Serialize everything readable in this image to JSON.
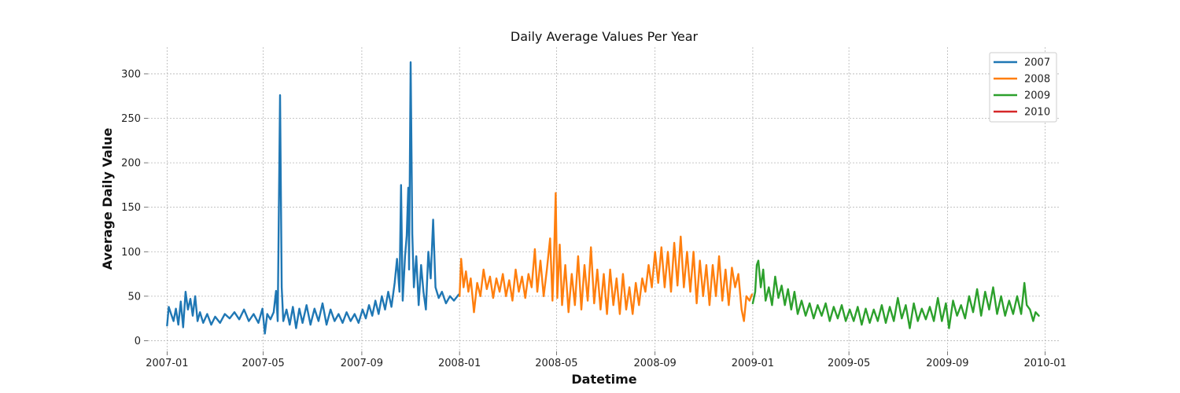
{
  "chart_data": {
    "type": "line",
    "title": "Daily Average Values Per Year",
    "xlabel": "Datetime",
    "ylabel": "Average Daily Value",
    "x_range": [
      "2006-12-08",
      "2010-01-20"
    ],
    "ylim": [
      -12,
      330
    ],
    "x_ticks": [
      "2007-01",
      "2007-05",
      "2007-09",
      "2008-01",
      "2008-05",
      "2008-09",
      "2009-01",
      "2009-05",
      "2009-09",
      "2010-01"
    ],
    "y_ticks": [
      0,
      50,
      100,
      150,
      200,
      250,
      300
    ],
    "grid": true,
    "legend_position": "top-right",
    "series": [
      {
        "name": "2007",
        "color": "#1f77b4",
        "points": [
          [
            "2007-01-01",
            17
          ],
          [
            "2007-01-03",
            38
          ],
          [
            "2007-01-06",
            30
          ],
          [
            "2007-01-09",
            22
          ],
          [
            "2007-01-12",
            36
          ],
          [
            "2007-01-15",
            18
          ],
          [
            "2007-01-18",
            44
          ],
          [
            "2007-01-21",
            15
          ],
          [
            "2007-01-24",
            55
          ],
          [
            "2007-01-27",
            35
          ],
          [
            "2007-01-30",
            47
          ],
          [
            "2007-02-02",
            28
          ],
          [
            "2007-02-05",
            50
          ],
          [
            "2007-02-08",
            22
          ],
          [
            "2007-02-11",
            32
          ],
          [
            "2007-02-15",
            20
          ],
          [
            "2007-02-20",
            30
          ],
          [
            "2007-02-25",
            18
          ],
          [
            "2007-03-02",
            27
          ],
          [
            "2007-03-08",
            20
          ],
          [
            "2007-03-14",
            30
          ],
          [
            "2007-03-20",
            25
          ],
          [
            "2007-03-26",
            32
          ],
          [
            "2007-04-01",
            24
          ],
          [
            "2007-04-07",
            35
          ],
          [
            "2007-04-13",
            22
          ],
          [
            "2007-04-19",
            30
          ],
          [
            "2007-04-25",
            20
          ],
          [
            "2007-04-30",
            36
          ],
          [
            "2007-05-03",
            8
          ],
          [
            "2007-05-06",
            30
          ],
          [
            "2007-05-10",
            24
          ],
          [
            "2007-05-14",
            32
          ],
          [
            "2007-05-17",
            56
          ],
          [
            "2007-05-19",
            22
          ],
          [
            "2007-05-22",
            276
          ],
          [
            "2007-05-24",
            60
          ],
          [
            "2007-05-26",
            22
          ],
          [
            "2007-05-30",
            35
          ],
          [
            "2007-06-03",
            18
          ],
          [
            "2007-06-07",
            38
          ],
          [
            "2007-06-11",
            14
          ],
          [
            "2007-06-15",
            36
          ],
          [
            "2007-06-19",
            20
          ],
          [
            "2007-06-24",
            40
          ],
          [
            "2007-06-29",
            18
          ],
          [
            "2007-07-04",
            36
          ],
          [
            "2007-07-09",
            22
          ],
          [
            "2007-07-14",
            42
          ],
          [
            "2007-07-19",
            18
          ],
          [
            "2007-07-24",
            35
          ],
          [
            "2007-07-29",
            22
          ],
          [
            "2007-08-03",
            30
          ],
          [
            "2007-08-08",
            20
          ],
          [
            "2007-08-13",
            32
          ],
          [
            "2007-08-18",
            22
          ],
          [
            "2007-08-23",
            30
          ],
          [
            "2007-08-28",
            20
          ],
          [
            "2007-09-02",
            35
          ],
          [
            "2007-09-06",
            25
          ],
          [
            "2007-09-10",
            40
          ],
          [
            "2007-09-14",
            28
          ],
          [
            "2007-09-18",
            45
          ],
          [
            "2007-09-22",
            30
          ],
          [
            "2007-09-26",
            50
          ],
          [
            "2007-09-30",
            35
          ],
          [
            "2007-10-04",
            55
          ],
          [
            "2007-10-08",
            38
          ],
          [
            "2007-10-12",
            65
          ],
          [
            "2007-10-15",
            92
          ],
          [
            "2007-10-18",
            55
          ],
          [
            "2007-10-20",
            175
          ],
          [
            "2007-10-22",
            45
          ],
          [
            "2007-10-25",
            95
          ],
          [
            "2007-10-27",
            118
          ],
          [
            "2007-10-29",
            172
          ],
          [
            "2007-10-30",
            80
          ],
          [
            "2007-11-01",
            313
          ],
          [
            "2007-11-03",
            120
          ],
          [
            "2007-11-05",
            60
          ],
          [
            "2007-11-08",
            95
          ],
          [
            "2007-11-11",
            40
          ],
          [
            "2007-11-14",
            85
          ],
          [
            "2007-11-17",
            55
          ],
          [
            "2007-11-20",
            35
          ],
          [
            "2007-11-23",
            100
          ],
          [
            "2007-11-26",
            70
          ],
          [
            "2007-11-29",
            136
          ],
          [
            "2007-12-02",
            60
          ],
          [
            "2007-12-06",
            48
          ],
          [
            "2007-12-10",
            55
          ],
          [
            "2007-12-15",
            42
          ],
          [
            "2007-12-20",
            50
          ],
          [
            "2007-12-25",
            45
          ],
          [
            "2007-12-31",
            52
          ]
        ]
      },
      {
        "name": "2008",
        "color": "#ff7f0e",
        "points": [
          [
            "2008-01-01",
            50
          ],
          [
            "2008-01-03",
            92
          ],
          [
            "2008-01-06",
            60
          ],
          [
            "2008-01-09",
            78
          ],
          [
            "2008-01-12",
            55
          ],
          [
            "2008-01-15",
            70
          ],
          [
            "2008-01-19",
            32
          ],
          [
            "2008-01-23",
            65
          ],
          [
            "2008-01-27",
            50
          ],
          [
            "2008-01-31",
            80
          ],
          [
            "2008-02-04",
            58
          ],
          [
            "2008-02-08",
            72
          ],
          [
            "2008-02-12",
            48
          ],
          [
            "2008-02-16",
            70
          ],
          [
            "2008-02-20",
            55
          ],
          [
            "2008-02-24",
            75
          ],
          [
            "2008-02-28",
            50
          ],
          [
            "2008-03-03",
            68
          ],
          [
            "2008-03-07",
            45
          ],
          [
            "2008-03-11",
            80
          ],
          [
            "2008-03-15",
            55
          ],
          [
            "2008-03-19",
            72
          ],
          [
            "2008-03-23",
            48
          ],
          [
            "2008-03-27",
            75
          ],
          [
            "2008-03-31",
            60
          ],
          [
            "2008-04-04",
            103
          ],
          [
            "2008-04-07",
            55
          ],
          [
            "2008-04-11",
            90
          ],
          [
            "2008-04-15",
            50
          ],
          [
            "2008-04-19",
            80
          ],
          [
            "2008-04-23",
            115
          ],
          [
            "2008-04-26",
            45
          ],
          [
            "2008-04-28",
            95
          ],
          [
            "2008-04-30",
            166
          ],
          [
            "2008-05-02",
            48
          ],
          [
            "2008-05-05",
            108
          ],
          [
            "2008-05-08",
            40
          ],
          [
            "2008-05-12",
            85
          ],
          [
            "2008-05-16",
            32
          ],
          [
            "2008-05-20",
            75
          ],
          [
            "2008-05-24",
            40
          ],
          [
            "2008-05-28",
            95
          ],
          [
            "2008-06-01",
            35
          ],
          [
            "2008-06-05",
            85
          ],
          [
            "2008-06-09",
            45
          ],
          [
            "2008-06-13",
            105
          ],
          [
            "2008-06-17",
            42
          ],
          [
            "2008-06-21",
            80
          ],
          [
            "2008-06-25",
            35
          ],
          [
            "2008-06-29",
            75
          ],
          [
            "2008-07-03",
            30
          ],
          [
            "2008-07-07",
            80
          ],
          [
            "2008-07-11",
            40
          ],
          [
            "2008-07-15",
            70
          ],
          [
            "2008-07-19",
            30
          ],
          [
            "2008-07-23",
            75
          ],
          [
            "2008-07-27",
            35
          ],
          [
            "2008-07-31",
            60
          ],
          [
            "2008-08-04",
            30
          ],
          [
            "2008-08-08",
            65
          ],
          [
            "2008-08-12",
            40
          ],
          [
            "2008-08-16",
            70
          ],
          [
            "2008-08-20",
            55
          ],
          [
            "2008-08-24",
            85
          ],
          [
            "2008-08-28",
            60
          ],
          [
            "2008-09-01",
            100
          ],
          [
            "2008-09-05",
            65
          ],
          [
            "2008-09-09",
            105
          ],
          [
            "2008-09-13",
            60
          ],
          [
            "2008-09-17",
            100
          ],
          [
            "2008-09-21",
            55
          ],
          [
            "2008-09-25",
            110
          ],
          [
            "2008-09-29",
            62
          ],
          [
            "2008-10-03",
            117
          ],
          [
            "2008-10-07",
            60
          ],
          [
            "2008-10-11",
            100
          ],
          [
            "2008-10-15",
            55
          ],
          [
            "2008-10-19",
            100
          ],
          [
            "2008-10-23",
            42
          ],
          [
            "2008-10-27",
            90
          ],
          [
            "2008-10-31",
            50
          ],
          [
            "2008-11-04",
            85
          ],
          [
            "2008-11-08",
            40
          ],
          [
            "2008-11-12",
            85
          ],
          [
            "2008-11-16",
            50
          ],
          [
            "2008-11-20",
            95
          ],
          [
            "2008-11-24",
            45
          ],
          [
            "2008-11-28",
            80
          ],
          [
            "2008-12-02",
            40
          ],
          [
            "2008-12-06",
            82
          ],
          [
            "2008-12-10",
            60
          ],
          [
            "2008-12-14",
            75
          ],
          [
            "2008-12-18",
            35
          ],
          [
            "2008-12-21",
            22
          ],
          [
            "2008-12-24",
            50
          ],
          [
            "2008-12-28",
            45
          ],
          [
            "2008-12-31",
            52
          ]
        ]
      },
      {
        "name": "2009",
        "color": "#2ca02c",
        "points": [
          [
            "2009-01-01",
            42
          ],
          [
            "2009-01-04",
            55
          ],
          [
            "2009-01-06",
            85
          ],
          [
            "2009-01-08",
            90
          ],
          [
            "2009-01-11",
            60
          ],
          [
            "2009-01-14",
            80
          ],
          [
            "2009-01-17",
            45
          ],
          [
            "2009-01-21",
            60
          ],
          [
            "2009-01-25",
            40
          ],
          [
            "2009-01-29",
            72
          ],
          [
            "2009-02-02",
            48
          ],
          [
            "2009-02-06",
            62
          ],
          [
            "2009-02-10",
            40
          ],
          [
            "2009-02-14",
            58
          ],
          [
            "2009-02-18",
            35
          ],
          [
            "2009-02-22",
            55
          ],
          [
            "2009-02-26",
            30
          ],
          [
            "2009-03-03",
            45
          ],
          [
            "2009-03-08",
            28
          ],
          [
            "2009-03-13",
            42
          ],
          [
            "2009-03-18",
            25
          ],
          [
            "2009-03-23",
            40
          ],
          [
            "2009-03-28",
            28
          ],
          [
            "2009-04-02",
            42
          ],
          [
            "2009-04-07",
            22
          ],
          [
            "2009-04-12",
            38
          ],
          [
            "2009-04-17",
            25
          ],
          [
            "2009-04-22",
            40
          ],
          [
            "2009-04-27",
            22
          ],
          [
            "2009-05-02",
            35
          ],
          [
            "2009-05-07",
            22
          ],
          [
            "2009-05-12",
            38
          ],
          [
            "2009-05-17",
            18
          ],
          [
            "2009-05-22",
            36
          ],
          [
            "2009-05-27",
            20
          ],
          [
            "2009-06-01",
            35
          ],
          [
            "2009-06-06",
            22
          ],
          [
            "2009-06-11",
            40
          ],
          [
            "2009-06-16",
            20
          ],
          [
            "2009-06-21",
            38
          ],
          [
            "2009-06-26",
            22
          ],
          [
            "2009-07-01",
            48
          ],
          [
            "2009-07-06",
            25
          ],
          [
            "2009-07-11",
            40
          ],
          [
            "2009-07-16",
            14
          ],
          [
            "2009-07-21",
            42
          ],
          [
            "2009-07-26",
            22
          ],
          [
            "2009-07-31",
            36
          ],
          [
            "2009-08-05",
            24
          ],
          [
            "2009-08-10",
            38
          ],
          [
            "2009-08-15",
            22
          ],
          [
            "2009-08-20",
            48
          ],
          [
            "2009-08-25",
            22
          ],
          [
            "2009-08-30",
            42
          ],
          [
            "2009-09-03",
            14
          ],
          [
            "2009-09-08",
            45
          ],
          [
            "2009-09-13",
            28
          ],
          [
            "2009-09-18",
            40
          ],
          [
            "2009-09-23",
            25
          ],
          [
            "2009-09-28",
            50
          ],
          [
            "2009-10-03",
            32
          ],
          [
            "2009-10-08",
            58
          ],
          [
            "2009-10-13",
            28
          ],
          [
            "2009-10-18",
            55
          ],
          [
            "2009-10-23",
            35
          ],
          [
            "2009-10-28",
            60
          ],
          [
            "2009-11-02",
            30
          ],
          [
            "2009-11-07",
            50
          ],
          [
            "2009-11-12",
            28
          ],
          [
            "2009-11-17",
            45
          ],
          [
            "2009-11-22",
            30
          ],
          [
            "2009-11-27",
            50
          ],
          [
            "2009-12-02",
            30
          ],
          [
            "2009-12-06",
            65
          ],
          [
            "2009-12-09",
            40
          ],
          [
            "2009-12-13",
            35
          ],
          [
            "2009-12-17",
            22
          ],
          [
            "2009-12-20",
            32
          ],
          [
            "2009-12-24",
            28
          ]
        ]
      },
      {
        "name": "2010",
        "color": "#d62728",
        "points": []
      }
    ]
  }
}
